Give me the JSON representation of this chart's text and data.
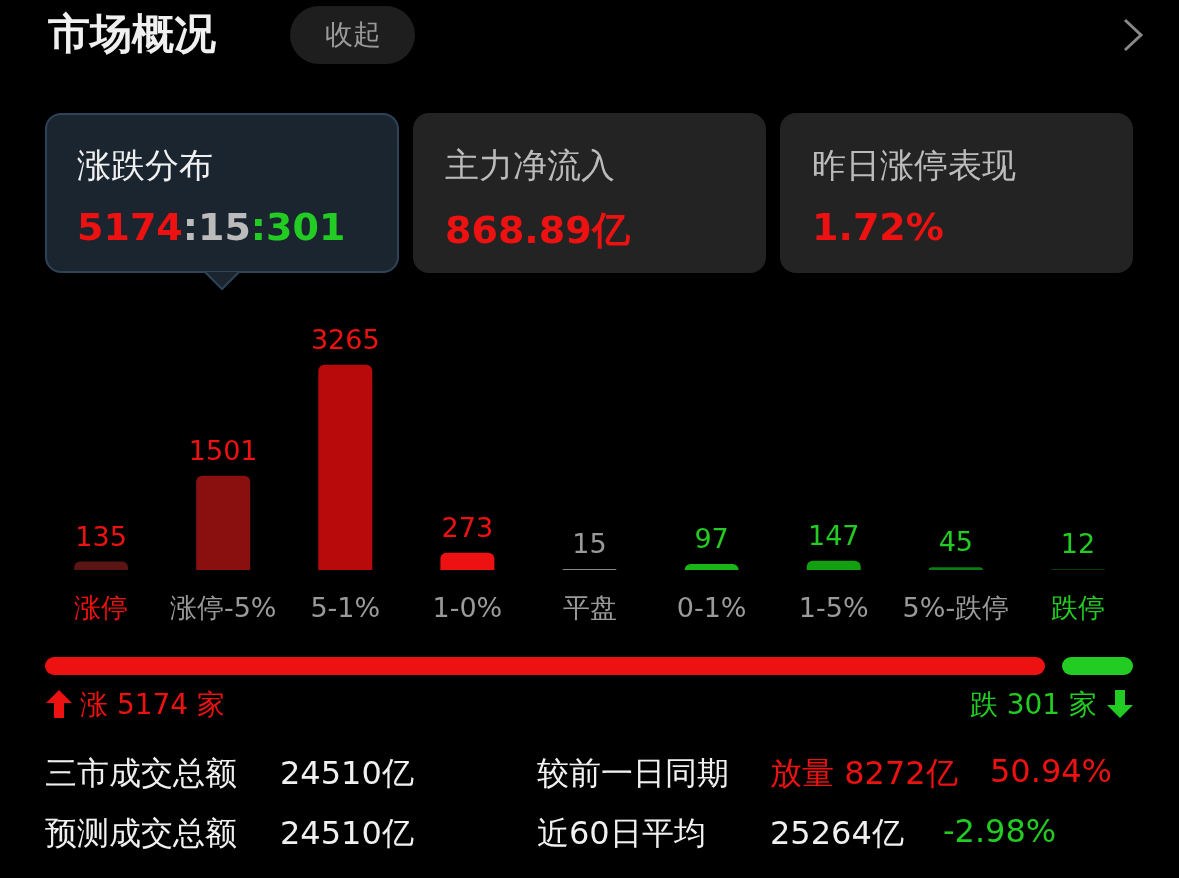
{
  "chart_data": {
    "type": "bar",
    "title": "市场概况",
    "categories": [
      "涨停",
      "涨停-5%",
      "5-1%",
      "1-0%",
      "平盘",
      "0-1%",
      "1-5%",
      "5%-跌停",
      "跌停"
    ],
    "values": [
      135,
      1501,
      3265,
      273,
      15,
      97,
      147,
      45,
      12
    ],
    "colors": [
      "#5a1414",
      "#8a1010",
      "#b80a0a",
      "#ee1111",
      "#8a8a8a",
      "#18b418",
      "#12a012",
      "#0f7a12",
      "#0c4f0f"
    ],
    "data_labels": true,
    "annotations": [
      "收起",
      "涨跌分布",
      "5174:15:301",
      "主力净流入",
      "868.89亿",
      "昨日涨停表现",
      "1.72%",
      "涨 5174 家",
      "跌 301 家",
      "三市成交总额",
      "24510亿",
      "预测成交总额",
      "24510亿",
      "较前一日同期",
      "放量 8272亿",
      "50.94%",
      "近60日平均",
      "25264亿",
      "-2.98%"
    ]
  }
}
